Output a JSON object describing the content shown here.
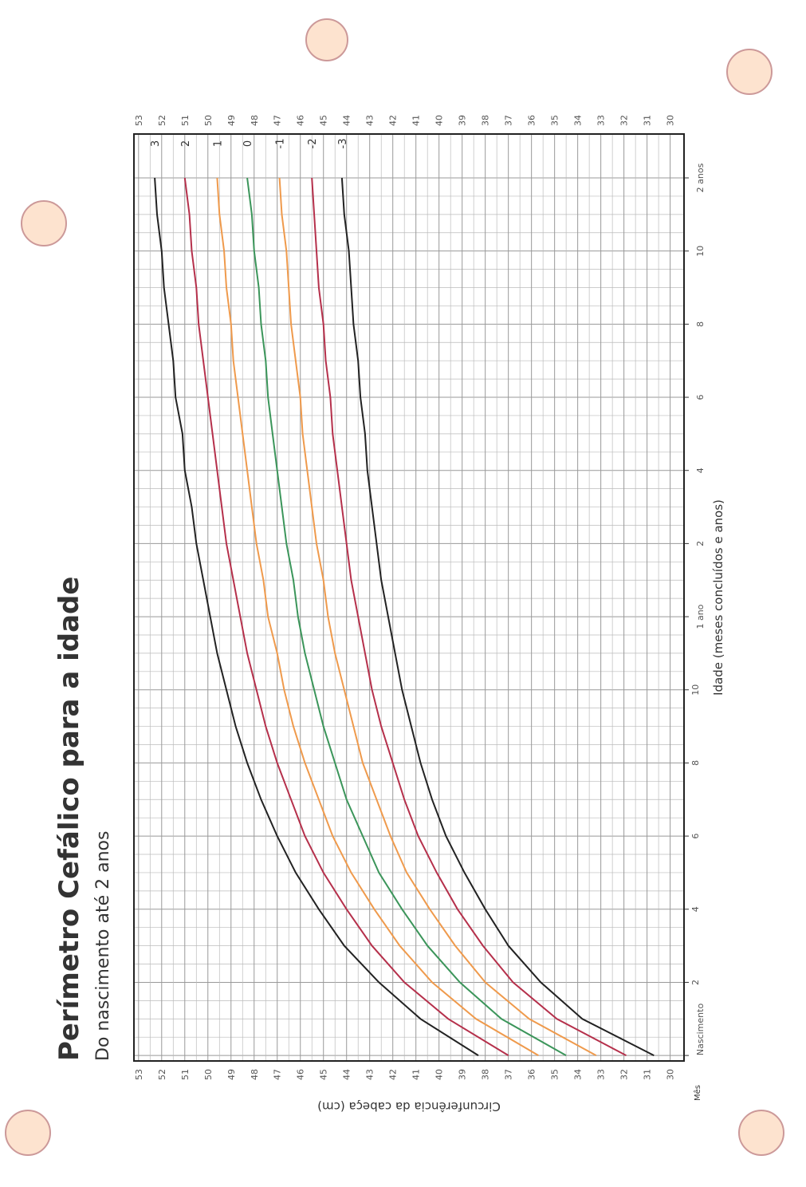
{
  "chart_data": {
    "type": "line",
    "title": "Perímetro Cefálico para a idade",
    "subtitle": "Do nascimento até 2 anos",
    "x_label": "Idade (meses concluídos e anos)",
    "y_label": "Circunferência da cabeça (cm)",
    "x_unit_label": "Mês",
    "x": [
      0,
      1,
      2,
      3,
      4,
      5,
      6,
      7,
      8,
      9,
      10,
      11,
      12,
      13,
      14,
      15,
      16,
      17,
      18,
      19,
      20,
      21,
      22,
      23,
      24
    ],
    "series": [
      {
        "name": "3",
        "color": "#222222",
        "values": [
          38.3,
          40.8,
          42.6,
          44.1,
          45.2,
          46.2,
          47.0,
          47.7,
          48.3,
          48.8,
          49.2,
          49.6,
          49.9,
          50.2,
          50.5,
          50.7,
          51.0,
          51.1,
          51.4,
          51.5,
          51.7,
          51.9,
          52.0,
          52.2,
          52.3
        ]
      },
      {
        "name": "2",
        "color": "#b5304b",
        "values": [
          37.0,
          39.6,
          41.5,
          42.9,
          44.0,
          45.0,
          45.8,
          46.4,
          47.0,
          47.5,
          47.9,
          48.3,
          48.6,
          48.9,
          49.2,
          49.4,
          49.6,
          49.8,
          50.0,
          50.2,
          50.4,
          50.5,
          50.7,
          50.8,
          51.0
        ]
      },
      {
        "name": "1",
        "color": "#ef9a4c",
        "values": [
          35.7,
          38.4,
          40.3,
          41.7,
          42.8,
          43.8,
          44.6,
          45.2,
          45.8,
          46.3,
          46.7,
          47.0,
          47.4,
          47.6,
          47.9,
          48.1,
          48.3,
          48.5,
          48.7,
          48.9,
          49.0,
          49.2,
          49.3,
          49.5,
          49.6
        ]
      },
      {
        "name": "0",
        "color": "#3b955a",
        "values": [
          34.5,
          37.3,
          39.1,
          40.5,
          41.6,
          42.6,
          43.3,
          44.0,
          44.5,
          45.0,
          45.4,
          45.8,
          46.1,
          46.3,
          46.6,
          46.8,
          47.0,
          47.2,
          47.4,
          47.5,
          47.7,
          47.8,
          48.0,
          48.1,
          48.3
        ]
      },
      {
        "name": "-1",
        "color": "#ef9a4c",
        "values": [
          33.2,
          36.1,
          38.0,
          39.3,
          40.4,
          41.4,
          42.1,
          42.7,
          43.3,
          43.7,
          44.1,
          44.5,
          44.8,
          45.0,
          45.3,
          45.5,
          45.7,
          45.9,
          46.0,
          46.2,
          46.4,
          46.5,
          46.6,
          46.8,
          46.9
        ]
      },
      {
        "name": "-2",
        "color": "#b5304b",
        "values": [
          31.9,
          34.9,
          36.8,
          38.1,
          39.2,
          40.1,
          40.9,
          41.5,
          42.0,
          42.5,
          42.9,
          43.2,
          43.5,
          43.8,
          44.0,
          44.2,
          44.4,
          44.6,
          44.7,
          44.9,
          45.0,
          45.2,
          45.3,
          45.4,
          45.5
        ]
      },
      {
        "name": "-3",
        "color": "#222222",
        "values": [
          30.7,
          33.8,
          35.6,
          37.0,
          38.0,
          38.9,
          39.7,
          40.3,
          40.8,
          41.2,
          41.6,
          41.9,
          42.2,
          42.5,
          42.7,
          42.9,
          43.1,
          43.2,
          43.4,
          43.5,
          43.7,
          43.8,
          43.9,
          44.1,
          44.2
        ]
      }
    ],
    "xlim": [
      -0.15,
      25.2
    ],
    "ylim": [
      29.4,
      53.2
    ],
    "xticks": [
      {
        "value": 0,
        "label": "Nascimento"
      },
      2,
      4,
      6,
      8,
      10,
      {
        "value": 12,
        "label": "1 ano"
      },
      {
        "value": 14,
        "label": "2"
      },
      {
        "value": 16,
        "label": "4"
      },
      {
        "value": 18,
        "label": "6"
      },
      {
        "value": 20,
        "label": "8"
      },
      {
        "value": 22,
        "label": "10"
      },
      {
        "value": 24,
        "label": "2 anos"
      }
    ],
    "yticks": [
      30,
      31,
      32,
      33,
      34,
      35,
      36,
      37,
      38,
      39,
      40,
      41,
      42,
      43,
      44,
      45,
      46,
      47,
      48,
      49,
      50,
      51,
      52,
      53
    ],
    "grid": true
  }
}
